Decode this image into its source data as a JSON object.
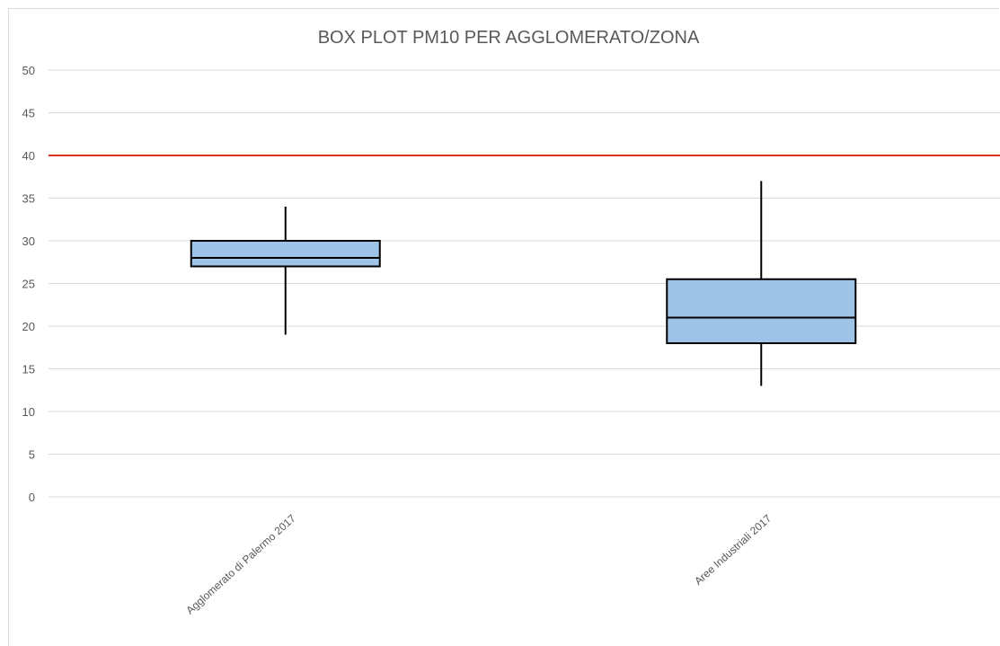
{
  "chart_data": {
    "type": "box",
    "title": "BOX PLOT PM10 PER AGGLOMERATO/ZONA",
    "categories": [
      "Agglomerato di Palermo 2017",
      "Aree Industriali 2017"
    ],
    "boxes": [
      {
        "category": "Agglomerato di Palermo 2017",
        "min": 19,
        "q1": 27,
        "median": 28,
        "q3": 30,
        "max": 34
      },
      {
        "category": "Aree Industriali 2017",
        "min": 13,
        "q1": 18,
        "median": 21,
        "q3": 25.5,
        "max": 37
      }
    ],
    "reference_line": {
      "value": 40,
      "color": "#e0301e"
    },
    "ylim": [
      0,
      50
    ],
    "yticks": [
      "0",
      "5",
      "10",
      "15",
      "20",
      "25",
      "30",
      "35",
      "40",
      "45",
      "50"
    ],
    "grid": true,
    "box_fill": "#9dc3e6",
    "box_stroke": "#000000"
  }
}
